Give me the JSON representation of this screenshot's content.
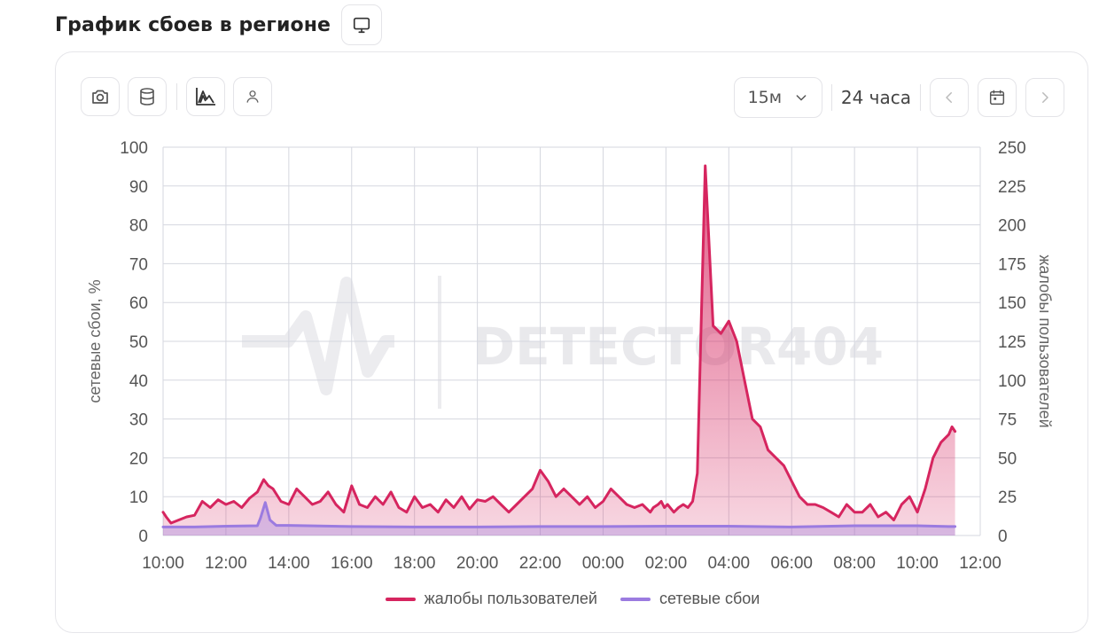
{
  "page": {
    "title": "График сбоев в регионе"
  },
  "toolbar": {
    "interval": "15м",
    "period": "24 часа"
  },
  "icons": {
    "header": "monitor-icon",
    "screenshot": "camera-icon",
    "data": "database-icon",
    "chart": "area-chart-icon",
    "user": "user-icon",
    "dropdown": "chevron-down-icon",
    "prev": "chevron-left-icon",
    "calendar": "calendar-icon",
    "next": "chevron-right-icon"
  },
  "watermark": {
    "text": "DETECTOR404"
  },
  "colors": {
    "complaints": "#d6255f",
    "network": "#9b7be0",
    "grid": "#d5d7df"
  },
  "chart_data": {
    "type": "area",
    "x_ticks": [
      "10:00",
      "12:00",
      "14:00",
      "16:00",
      "18:00",
      "20:00",
      "22:00",
      "00:00",
      "02:00",
      "04:00",
      "06:00",
      "08:00",
      "10:00",
      "12:00"
    ],
    "x_range_hours": [
      0,
      26
    ],
    "y_left": {
      "label": "сетевые сбои, %",
      "range": [
        0,
        100
      ],
      "ticks": [
        0,
        10,
        20,
        30,
        40,
        50,
        60,
        70,
        80,
        90,
        100
      ]
    },
    "y_right": {
      "label": "жалобы пользователей",
      "range": [
        0,
        250
      ],
      "ticks": [
        0,
        25,
        50,
        75,
        100,
        125,
        150,
        175,
        200,
        225,
        250
      ]
    },
    "grid": true,
    "legend_position": "bottom",
    "series": [
      {
        "name": "жалобы пользователей",
        "axis": "right",
        "x": [
          0,
          0.1,
          0.25,
          0.5,
          0.75,
          1.0,
          1.25,
          1.5,
          1.75,
          2.0,
          2.25,
          2.5,
          2.75,
          3.0,
          3.2,
          3.35,
          3.5,
          3.75,
          4.0,
          4.25,
          4.5,
          4.75,
          5.0,
          5.25,
          5.5,
          5.75,
          6.0,
          6.25,
          6.5,
          6.75,
          7.0,
          7.25,
          7.5,
          7.75,
          8.0,
          8.25,
          8.5,
          8.75,
          9.0,
          9.25,
          9.5,
          9.75,
          10.0,
          10.25,
          10.5,
          10.75,
          11.0,
          11.25,
          11.5,
          11.75,
          12.0,
          12.25,
          12.5,
          12.75,
          13.0,
          13.25,
          13.5,
          13.75,
          14.0,
          14.25,
          14.5,
          14.75,
          15.0,
          15.25,
          15.5,
          15.6,
          15.75,
          15.85,
          15.95,
          16.05,
          16.25,
          16.4,
          16.55,
          16.7,
          16.85,
          17.0,
          17.25,
          17.5,
          17.75,
          18.0,
          18.25,
          18.5,
          18.75,
          19.0,
          19.25,
          19.5,
          19.75,
          20.0,
          20.25,
          20.5,
          20.75,
          21.0,
          21.25,
          21.5,
          21.75,
          22.0,
          22.25,
          22.5,
          22.75,
          23.0,
          23.25,
          23.5,
          23.75,
          24.0,
          24.25,
          24.5,
          24.75,
          25.0,
          25.1,
          25.2
        ],
        "values": [
          15,
          12,
          8,
          10,
          12,
          13,
          22,
          18,
          23,
          20,
          22,
          18,
          24,
          28,
          36,
          32,
          30,
          22,
          20,
          30,
          25,
          20,
          22,
          28,
          20,
          15,
          32,
          20,
          18,
          25,
          20,
          28,
          18,
          15,
          25,
          18,
          20,
          15,
          23,
          18,
          25,
          17,
          23,
          22,
          25,
          20,
          15,
          20,
          25,
          30,
          42,
          35,
          25,
          30,
          25,
          20,
          25,
          18,
          22,
          30,
          25,
          20,
          18,
          20,
          15,
          18,
          20,
          22,
          18,
          20,
          15,
          18,
          20,
          18,
          22,
          40,
          238,
          135,
          130,
          138,
          125,
          100,
          75,
          70,
          55,
          50,
          45,
          35,
          25,
          20,
          20,
          18,
          15,
          12,
          20,
          15,
          15,
          20,
          12,
          15,
          10,
          20,
          25,
          15,
          30,
          50,
          60,
          65,
          70,
          67
        ]
      },
      {
        "name": "сетевые сбои",
        "axis": "left",
        "x": [
          0,
          1,
          2,
          3,
          3.1,
          3.25,
          3.4,
          3.6,
          4,
          6,
          8,
          10,
          12,
          14,
          16,
          18,
          20,
          22,
          24,
          25,
          25.2
        ],
        "values": [
          2.2,
          2.2,
          2.4,
          2.5,
          4.5,
          8.5,
          4.0,
          2.6,
          2.6,
          2.3,
          2.2,
          2.2,
          2.3,
          2.3,
          2.4,
          2.4,
          2.2,
          2.5,
          2.5,
          2.3,
          2.3
        ]
      }
    ]
  }
}
